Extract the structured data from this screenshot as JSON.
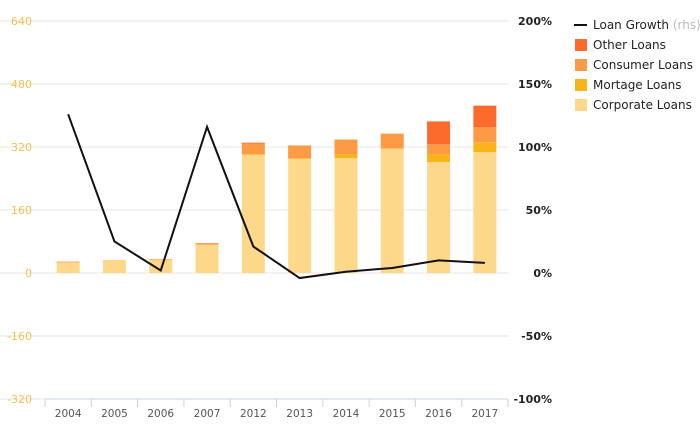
{
  "chart_data": {
    "type": "bar",
    "categories": [
      "2004",
      "2005",
      "2006",
      "2007",
      "2012",
      "2013",
      "2014",
      "2015",
      "2016",
      "2017"
    ],
    "stack_order": [
      "Corporate Loans",
      "Mortage Loans",
      "Consumer Loans",
      "Other Loans"
    ],
    "series": [
      {
        "name": "Corporate Loans",
        "axis": "left",
        "kind": "bar",
        "color": "#fdd88a",
        "values": [
          27,
          33,
          33,
          72,
          300,
          290,
          292,
          316,
          282,
          307
        ]
      },
      {
        "name": "Mortage Loans",
        "axis": "left",
        "kind": "bar",
        "color": "#f8b419",
        "values": [
          0,
          0,
          1,
          0,
          2,
          2,
          10,
          0,
          20,
          25
        ]
      },
      {
        "name": "Consumer Loans",
        "axis": "left",
        "kind": "bar",
        "color": "#fc9a45",
        "values": [
          2,
          0,
          1,
          4,
          27,
          32,
          37,
          38,
          25,
          38
        ]
      },
      {
        "name": "Other Loans",
        "axis": "left",
        "kind": "bar",
        "color": "#fd6b2c",
        "values": [
          0,
          0,
          0,
          0,
          2,
          0,
          0,
          0,
          58,
          55
        ]
      },
      {
        "name": "Loan Growth",
        "axis": "right",
        "kind": "line",
        "color": "#111111",
        "values": [
          126,
          25,
          2,
          116,
          21,
          -4,
          1,
          4,
          10,
          8
        ]
      }
    ],
    "y_left": {
      "ticks": [
        "640",
        "480",
        "320",
        "160",
        "0",
        "-160",
        "-320"
      ],
      "ylim": [
        -320,
        640
      ]
    },
    "y_right": {
      "ticks": [
        "200%",
        "150%",
        "100%",
        "50%",
        "0%",
        "-50%",
        "-100%"
      ],
      "ylim": [
        -100,
        200
      ]
    },
    "grid": true,
    "legend": {
      "position": "top-right",
      "items": [
        {
          "label": "Loan Growth",
          "hint": "(rhs)",
          "symbol": "line",
          "color": "#111111"
        },
        {
          "label": "Other Loans",
          "symbol": "square",
          "color": "#fd6b2c"
        },
        {
          "label": "Consumer Loans",
          "symbol": "square",
          "color": "#fc9a45"
        },
        {
          "label": "Mortage Loans",
          "symbol": "square",
          "color": "#f8b419"
        },
        {
          "label": "Corporate Loans",
          "symbol": "square",
          "color": "#fdd88a"
        }
      ]
    }
  }
}
